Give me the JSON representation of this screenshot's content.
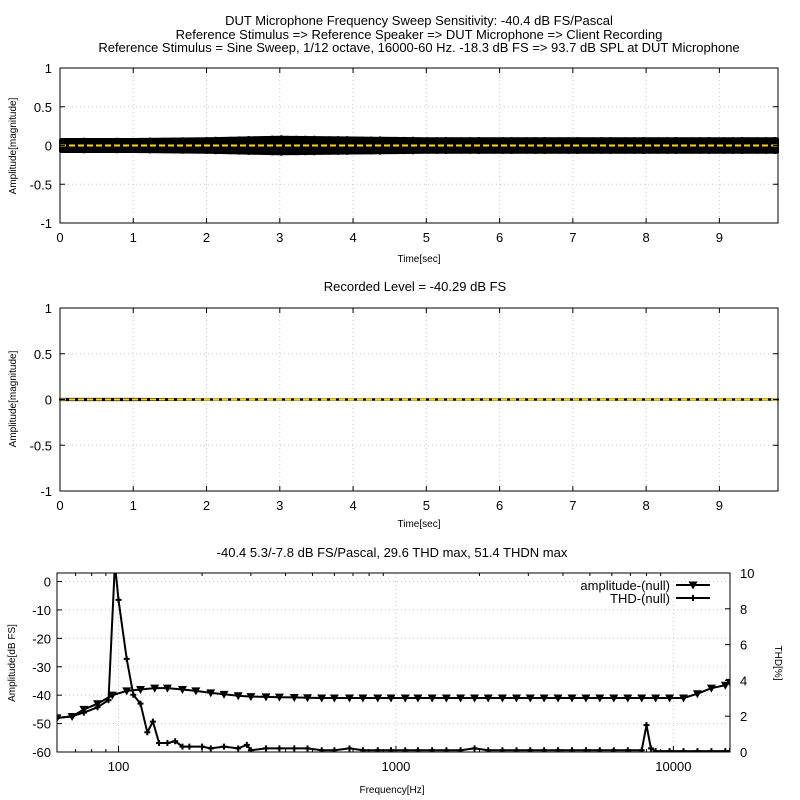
{
  "figure": {
    "title_lines": [
      "DUT Microphone Frequency Sweep Sensitivity: -40.4 dB FS/Pascal",
      "Reference Stimulus => Reference Speaker => DUT Microphone => Client Recording",
      "Reference Stimulus = Sine Sweep, 1/12 octave, 16000-60 Hz. -18.3 dB FS => 93.7 dB SPL at DUT Microphone"
    ]
  },
  "colors": {
    "trace": "#000000",
    "midline": "#ffd700",
    "grid": "#c8c8c8"
  },
  "chart_data": [
    {
      "type": "line",
      "title": "",
      "xlabel": "Time[sec]",
      "ylabel": "Amplitude[magnitude]",
      "xlim": [
        0,
        9.8
      ],
      "ylim": [
        -1,
        1
      ],
      "xticks": [
        "0",
        "1",
        "2",
        "3",
        "4",
        "5",
        "6",
        "7",
        "8",
        "9"
      ],
      "yticks": [
        "1",
        "0.5",
        "0",
        "-0.5",
        "-1"
      ],
      "grid": true,
      "series": [
        {
          "envelope_x": [
            0,
            1,
            2,
            3,
            4,
            5,
            6,
            7,
            8,
            9,
            9.8
          ],
          "envelope_y": [
            0.09,
            0.09,
            0.1,
            0.12,
            0.11,
            0.1,
            0.1,
            0.1,
            0.1,
            0.1,
            0.1
          ]
        }
      ]
    },
    {
      "type": "line",
      "title": "Recorded Level = -40.29 dB FS",
      "xlabel": "Time[sec]",
      "ylabel": "Amplitude[magnitude]",
      "xlim": [
        0,
        9.8
      ],
      "ylim": [
        -1,
        1
      ],
      "xticks": [
        "0",
        "1",
        "2",
        "3",
        "4",
        "5",
        "6",
        "7",
        "8",
        "9"
      ],
      "yticks": [
        "1",
        "0.5",
        "0",
        "-0.5",
        "-1"
      ],
      "grid": true,
      "series": [
        {
          "envelope_x": [
            0,
            1,
            2,
            3,
            4,
            5,
            6,
            7,
            8,
            9,
            9.8
          ],
          "envelope_y": [
            0.012,
            0.012,
            0.008,
            0.008,
            0.008,
            0.008,
            0.008,
            0.008,
            0.008,
            0.008,
            0.008
          ]
        }
      ]
    },
    {
      "type": "line",
      "title": "-40.4 5.3/-7.8 dB FS/Pascal, 29.6 THD max, 51.4 THDN max",
      "xlabel": "Frequency[Hz]",
      "ylabel": "Amplitude[dB FS]",
      "y2label": "THD[%]",
      "x_scale": "log",
      "xlim": [
        60,
        16000
      ],
      "ylim": [
        -60,
        3
      ],
      "y2lim": [
        0,
        10
      ],
      "xticks": [
        "100",
        "1000",
        "10000"
      ],
      "yticks": [
        "0",
        "-10",
        "-20",
        "-30",
        "-40",
        "-50",
        "-60"
      ],
      "y2ticks": [
        "10",
        "8",
        "6",
        "4",
        "2",
        "0"
      ],
      "grid": true,
      "legend_position": "top-right",
      "series": [
        {
          "name": "amplitude-(null)",
          "marker": "triangle-down",
          "x": [
            60,
            68,
            75,
            84,
            95,
            107,
            120,
            135,
            150,
            170,
            190,
            215,
            240,
            270,
            300,
            340,
            380,
            430,
            480,
            540,
            600,
            680,
            760,
            860,
            960,
            1080,
            1200,
            1350,
            1520,
            1710,
            1920,
            2150,
            2420,
            2720,
            3050,
            3420,
            3840,
            4310,
            4840,
            5430,
            6100,
            6850,
            7690,
            8630,
            9690,
            10880,
            12210,
            13710,
            15390,
            16000
          ],
          "y": [
            -48,
            -47.5,
            -45,
            -43,
            -40,
            -38.5,
            -38,
            -37.5,
            -37.5,
            -38,
            -38.5,
            -39.2,
            -39.7,
            -40.2,
            -40.5,
            -40.6,
            -40.7,
            -40.8,
            -40.9,
            -41,
            -41,
            -41,
            -41,
            -41,
            -41,
            -41,
            -41,
            -41,
            -41,
            -41,
            -41,
            -41,
            -41,
            -41,
            -41,
            -41,
            -41,
            -41,
            -41,
            -41,
            -41,
            -41,
            -41,
            -41,
            -41,
            -41,
            -39.5,
            -37.5,
            -36.5,
            -35.5
          ]
        },
        {
          "name": "THD-(null)",
          "marker": "plus",
          "x": [
            60,
            68,
            75,
            84,
            92,
            97,
            100,
            107,
            113,
            120,
            127,
            133,
            140,
            150,
            160,
            170,
            180,
            200,
            215,
            240,
            270,
            290,
            300,
            340,
            380,
            430,
            480,
            540,
            600,
            680,
            760,
            860,
            960,
            1080,
            1200,
            1350,
            1520,
            1710,
            1920,
            2150,
            2420,
            2720,
            3050,
            3420,
            3840,
            4310,
            4840,
            5430,
            6100,
            6850,
            7690,
            8000,
            8300,
            8630,
            9690,
            10880,
            12210,
            13710,
            15390,
            16000
          ],
          "y": [
            1.9,
            2.0,
            2.2,
            2.5,
            2.9,
            10.5,
            8.5,
            5.2,
            3.2,
            2.7,
            1.1,
            1.7,
            0.5,
            0.5,
            0.6,
            0.3,
            0.3,
            0.3,
            0.2,
            0.3,
            0.2,
            0.4,
            0.1,
            0.2,
            0.2,
            0.2,
            0.2,
            0.1,
            0.1,
            0.2,
            0.1,
            0.1,
            0.1,
            0.1,
            0.1,
            0.1,
            0.1,
            0.1,
            0.2,
            0.1,
            0.1,
            0.1,
            0.1,
            0.1,
            0.1,
            0.1,
            0.1,
            0.1,
            0.1,
            0.1,
            0.1,
            1.5,
            0.2,
            0.05,
            0.05,
            0.05,
            0.05,
            0.05,
            0.05,
            0.05
          ]
        }
      ]
    }
  ]
}
